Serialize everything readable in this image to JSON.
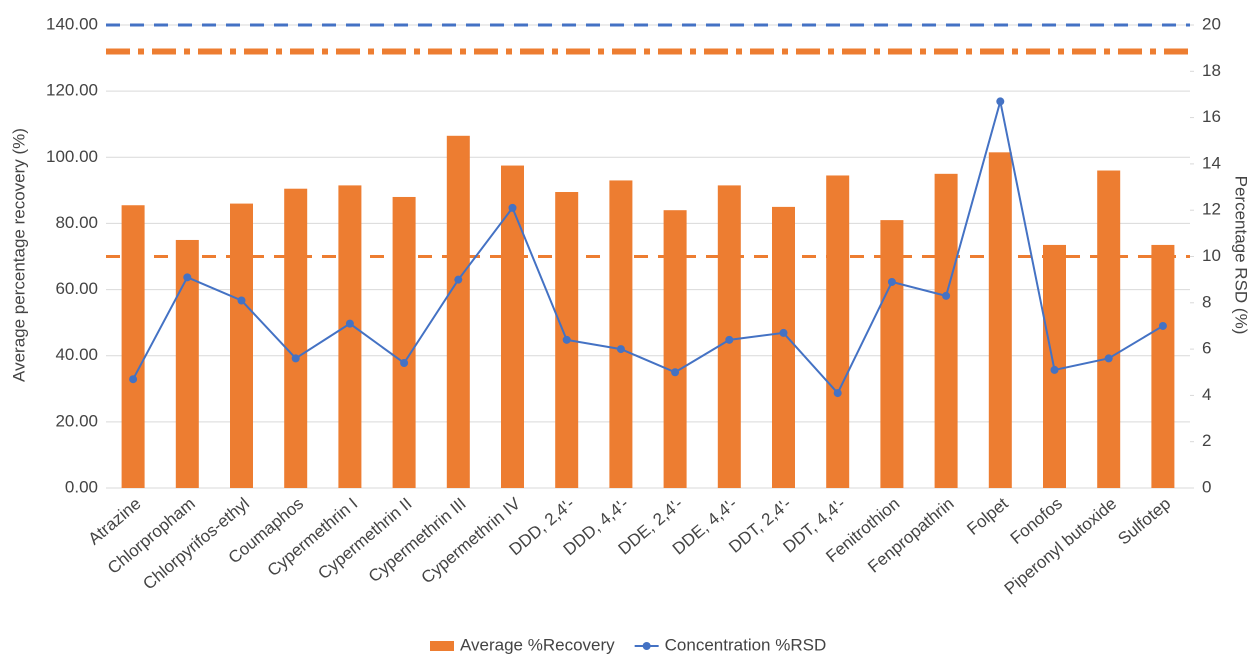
{
  "chart_data": {
    "type": "bar-line",
    "y_label": "Average percentage recovery (%)",
    "y2_label": "Percentage RSD (%)",
    "categories": [
      "Atrazine",
      "Chlorpropham",
      "Chlorpyrifos-ethyl",
      "Coumaphos",
      "Cypermethrin I",
      "Cypermethrin II",
      "Cypermethrin III",
      "Cypermethrin IV",
      "DDD, 2,4'-",
      "DDD, 4,4'-",
      "DDE, 2,4'-",
      "DDE, 4,4'-",
      "DDT, 2,4'-",
      "DDT, 4,4'-",
      "Fenitrothion",
      "Fenpropathrin",
      "Folpet",
      "Fonofos",
      "Piperonyl butoxide",
      "Sulfotep"
    ],
    "series": [
      {
        "name": "Average %Recovery",
        "type": "bar",
        "color": "#ed7d31",
        "values": [
          85.5,
          75,
          86,
          90.5,
          91.5,
          88,
          106.5,
          97.5,
          89.5,
          93,
          84,
          91.5,
          85,
          94.5,
          81,
          95,
          101.5,
          73.5,
          96,
          73.5
        ]
      },
      {
        "name": "Concentration %RSD",
        "type": "line",
        "axis": "y2",
        "color": "#4472c4",
        "values": [
          4.7,
          9.1,
          8.1,
          5.6,
          7.1,
          5.4,
          9.0,
          12.1,
          6.4,
          6.0,
          5.0,
          6.4,
          6.7,
          4.1,
          8.9,
          8.3,
          16.7,
          5.1,
          5.6,
          7.0
        ]
      }
    ],
    "reference_lines": [
      {
        "axis": "y2",
        "value": 20,
        "color": "#4472c4",
        "style": "dashed"
      },
      {
        "axis": "y",
        "value": 132,
        "color": "#ed7d31",
        "style": "dashdot"
      },
      {
        "axis": "y",
        "value": 70,
        "color": "#ed7d31",
        "style": "dashed"
      }
    ],
    "ylim": [
      0,
      140
    ],
    "yticks": [
      {
        "value": 0,
        "label": "0.00"
      },
      {
        "value": 20,
        "label": "20.00"
      },
      {
        "value": 40,
        "label": "40.00"
      },
      {
        "value": 60,
        "label": "60.00"
      },
      {
        "value": 80,
        "label": "80.00"
      },
      {
        "value": 100,
        "label": "100.00"
      },
      {
        "value": 120,
        "label": "120.00"
      },
      {
        "value": 140,
        "label": "140.00"
      }
    ],
    "y2lim": [
      0,
      20
    ],
    "y2ticks": [
      0,
      2,
      4,
      6,
      8,
      10,
      12,
      14,
      16,
      18,
      20
    ],
    "grid": true
  }
}
